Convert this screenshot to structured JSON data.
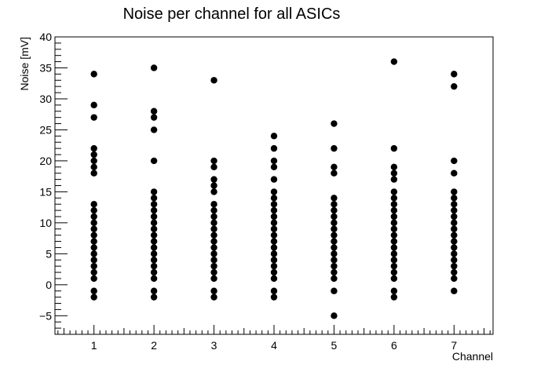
{
  "chart_data": {
    "type": "scatter",
    "title": "Noise per channel for all ASICs",
    "xlabel": "Channel",
    "ylabel": "Noise [mV]",
    "xlim": [
      0.35,
      7.65
    ],
    "ylim": [
      -8,
      40
    ],
    "x_ticks": [
      1,
      2,
      3,
      4,
      5,
      6,
      7
    ],
    "y_ticks": [
      -5,
      0,
      5,
      10,
      15,
      20,
      25,
      30,
      35,
      40
    ],
    "x_tick_labels": [
      "1",
      "2",
      "3",
      "4",
      "5",
      "6",
      "7"
    ],
    "y_tick_labels": [
      "−5",
      "0",
      "5",
      "10",
      "15",
      "20",
      "25",
      "30",
      "35",
      "40"
    ],
    "grid": false,
    "marker_color": "#000000",
    "series": [
      {
        "points": [
          {
            "x": 1,
            "y": 34
          },
          {
            "x": 1,
            "y": 29
          },
          {
            "x": 1,
            "y": 27
          },
          {
            "x": 1,
            "y": 22
          },
          {
            "x": 1,
            "y": 21
          },
          {
            "x": 1,
            "y": 20
          },
          {
            "x": 1,
            "y": 19
          },
          {
            "x": 1,
            "y": 18
          },
          {
            "x": 1,
            "y": 13
          },
          {
            "x": 1,
            "y": 12
          },
          {
            "x": 1,
            "y": 11
          },
          {
            "x": 1,
            "y": 10
          },
          {
            "x": 1,
            "y": 9
          },
          {
            "x": 1,
            "y": 8
          },
          {
            "x": 1,
            "y": 7
          },
          {
            "x": 1,
            "y": 6
          },
          {
            "x": 1,
            "y": 5
          },
          {
            "x": 1,
            "y": 4
          },
          {
            "x": 1,
            "y": 3
          },
          {
            "x": 1,
            "y": 2
          },
          {
            "x": 1,
            "y": 1
          },
          {
            "x": 1,
            "y": -1
          },
          {
            "x": 1,
            "y": -2
          },
          {
            "x": 2,
            "y": 35
          },
          {
            "x": 2,
            "y": 28
          },
          {
            "x": 2,
            "y": 27
          },
          {
            "x": 2,
            "y": 25
          },
          {
            "x": 2,
            "y": 20
          },
          {
            "x": 2,
            "y": 15
          },
          {
            "x": 2,
            "y": 14
          },
          {
            "x": 2,
            "y": 13
          },
          {
            "x": 2,
            "y": 12
          },
          {
            "x": 2,
            "y": 11
          },
          {
            "x": 2,
            "y": 10
          },
          {
            "x": 2,
            "y": 9
          },
          {
            "x": 2,
            "y": 8
          },
          {
            "x": 2,
            "y": 7
          },
          {
            "x": 2,
            "y": 6
          },
          {
            "x": 2,
            "y": 5
          },
          {
            "x": 2,
            "y": 4
          },
          {
            "x": 2,
            "y": 3
          },
          {
            "x": 2,
            "y": 2
          },
          {
            "x": 2,
            "y": 1
          },
          {
            "x": 2,
            "y": -1
          },
          {
            "x": 2,
            "y": -2
          },
          {
            "x": 3,
            "y": 33
          },
          {
            "x": 3,
            "y": 20
          },
          {
            "x": 3,
            "y": 19
          },
          {
            "x": 3,
            "y": 17
          },
          {
            "x": 3,
            "y": 16
          },
          {
            "x": 3,
            "y": 15
          },
          {
            "x": 3,
            "y": 13
          },
          {
            "x": 3,
            "y": 12
          },
          {
            "x": 3,
            "y": 11
          },
          {
            "x": 3,
            "y": 10
          },
          {
            "x": 3,
            "y": 9
          },
          {
            "x": 3,
            "y": 8
          },
          {
            "x": 3,
            "y": 7
          },
          {
            "x": 3,
            "y": 6
          },
          {
            "x": 3,
            "y": 5
          },
          {
            "x": 3,
            "y": 4
          },
          {
            "x": 3,
            "y": 3
          },
          {
            "x": 3,
            "y": 2
          },
          {
            "x": 3,
            "y": 1
          },
          {
            "x": 3,
            "y": -1
          },
          {
            "x": 3,
            "y": -2
          },
          {
            "x": 4,
            "y": 24
          },
          {
            "x": 4,
            "y": 22
          },
          {
            "x": 4,
            "y": 20
          },
          {
            "x": 4,
            "y": 19
          },
          {
            "x": 4,
            "y": 17
          },
          {
            "x": 4,
            "y": 15
          },
          {
            "x": 4,
            "y": 14
          },
          {
            "x": 4,
            "y": 13
          },
          {
            "x": 4,
            "y": 12
          },
          {
            "x": 4,
            "y": 11
          },
          {
            "x": 4,
            "y": 10
          },
          {
            "x": 4,
            "y": 9
          },
          {
            "x": 4,
            "y": 8
          },
          {
            "x": 4,
            "y": 7
          },
          {
            "x": 4,
            "y": 6
          },
          {
            "x": 4,
            "y": 5
          },
          {
            "x": 4,
            "y": 4
          },
          {
            "x": 4,
            "y": 3
          },
          {
            "x": 4,
            "y": 2
          },
          {
            "x": 4,
            "y": 1
          },
          {
            "x": 4,
            "y": -1
          },
          {
            "x": 4,
            "y": -2
          },
          {
            "x": 5,
            "y": 26
          },
          {
            "x": 5,
            "y": 22
          },
          {
            "x": 5,
            "y": 19
          },
          {
            "x": 5,
            "y": 18
          },
          {
            "x": 5,
            "y": 14
          },
          {
            "x": 5,
            "y": 13
          },
          {
            "x": 5,
            "y": 12
          },
          {
            "x": 5,
            "y": 11
          },
          {
            "x": 5,
            "y": 10
          },
          {
            "x": 5,
            "y": 9
          },
          {
            "x": 5,
            "y": 8
          },
          {
            "x": 5,
            "y": 7
          },
          {
            "x": 5,
            "y": 6
          },
          {
            "x": 5,
            "y": 5
          },
          {
            "x": 5,
            "y": 4
          },
          {
            "x": 5,
            "y": 3
          },
          {
            "x": 5,
            "y": 2
          },
          {
            "x": 5,
            "y": 1
          },
          {
            "x": 5,
            "y": -1
          },
          {
            "x": 5,
            "y": -5
          },
          {
            "x": 6,
            "y": 36
          },
          {
            "x": 6,
            "y": 22
          },
          {
            "x": 6,
            "y": 19
          },
          {
            "x": 6,
            "y": 18
          },
          {
            "x": 6,
            "y": 17
          },
          {
            "x": 6,
            "y": 15
          },
          {
            "x": 6,
            "y": 14
          },
          {
            "x": 6,
            "y": 13
          },
          {
            "x": 6,
            "y": 12
          },
          {
            "x": 6,
            "y": 11
          },
          {
            "x": 6,
            "y": 10
          },
          {
            "x": 6,
            "y": 9
          },
          {
            "x": 6,
            "y": 8
          },
          {
            "x": 6,
            "y": 7
          },
          {
            "x": 6,
            "y": 6
          },
          {
            "x": 6,
            "y": 5
          },
          {
            "x": 6,
            "y": 4
          },
          {
            "x": 6,
            "y": 3
          },
          {
            "x": 6,
            "y": 2
          },
          {
            "x": 6,
            "y": 1
          },
          {
            "x": 6,
            "y": -1
          },
          {
            "x": 6,
            "y": -2
          },
          {
            "x": 7,
            "y": 34
          },
          {
            "x": 7,
            "y": 32
          },
          {
            "x": 7,
            "y": 20
          },
          {
            "x": 7,
            "y": 18
          },
          {
            "x": 7,
            "y": 15
          },
          {
            "x": 7,
            "y": 14
          },
          {
            "x": 7,
            "y": 13
          },
          {
            "x": 7,
            "y": 12
          },
          {
            "x": 7,
            "y": 11
          },
          {
            "x": 7,
            "y": 10
          },
          {
            "x": 7,
            "y": 9
          },
          {
            "x": 7,
            "y": 8
          },
          {
            "x": 7,
            "y": 7
          },
          {
            "x": 7,
            "y": 6
          },
          {
            "x": 7,
            "y": 5
          },
          {
            "x": 7,
            "y": 4
          },
          {
            "x": 7,
            "y": 3
          },
          {
            "x": 7,
            "y": 2
          },
          {
            "x": 7,
            "y": 1
          },
          {
            "x": 7,
            "y": -1
          }
        ]
      }
    ]
  }
}
